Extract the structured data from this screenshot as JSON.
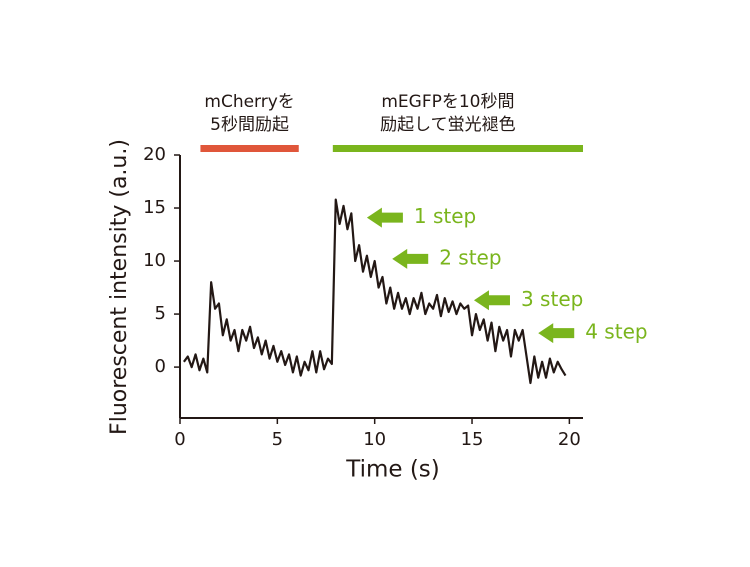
{
  "chart_data": {
    "type": "line",
    "xlabel": "Time (s)",
    "ylabel": "Fluorescent intensity (a.u.)",
    "xlim": [
      0,
      20.7
    ],
    "ylim": [
      -4.8,
      20
    ],
    "xticks": [
      0,
      5,
      10,
      15,
      20
    ],
    "yticks": [
      0,
      5,
      10,
      15,
      20
    ],
    "x": [
      0.2,
      0.4,
      0.6,
      0.8,
      1.0,
      1.2,
      1.4,
      1.6,
      1.8,
      2.0,
      2.2,
      2.4,
      2.6,
      2.8,
      3.0,
      3.2,
      3.4,
      3.6,
      3.8,
      4.0,
      4.2,
      4.4,
      4.6,
      4.8,
      5.0,
      5.2,
      5.4,
      5.6,
      5.8,
      6.0,
      6.2,
      6.4,
      6.6,
      6.8,
      7.0,
      7.2,
      7.4,
      7.6,
      7.8,
      8.0,
      8.2,
      8.4,
      8.6,
      8.8,
      9.0,
      9.2,
      9.4,
      9.6,
      9.8,
      10.0,
      10.2,
      10.4,
      10.6,
      10.8,
      11.0,
      11.2,
      11.4,
      11.6,
      11.8,
      12.0,
      12.2,
      12.4,
      12.6,
      12.8,
      13.0,
      13.2,
      13.4,
      13.6,
      13.8,
      14.0,
      14.2,
      14.4,
      14.6,
      14.8,
      15.0,
      15.2,
      15.4,
      15.6,
      15.8,
      16.0,
      16.2,
      16.4,
      16.6,
      16.8,
      17.0,
      17.2,
      17.4,
      17.6,
      17.8,
      18.0,
      18.2,
      18.4,
      18.6,
      18.8,
      19.0,
      19.2,
      19.4,
      19.6,
      19.8
    ],
    "series": [
      {
        "color": "#231815",
        "values": [
          0.5,
          1,
          0,
          1.2,
          -0.3,
          0.8,
          -0.5,
          8,
          5.5,
          6,
          3,
          4.5,
          2.5,
          3.5,
          1.5,
          3.5,
          2.5,
          3.8,
          1.8,
          2.8,
          1.2,
          2.5,
          0.8,
          2,
          0.5,
          1.5,
          0.2,
          1.2,
          -0.5,
          1,
          -0.8,
          0.5,
          -0.3,
          1.5,
          -0.5,
          1.5,
          -0.2,
          0.8,
          0.3,
          15.8,
          13.5,
          15.2,
          13,
          14.5,
          10,
          11.5,
          9,
          10.5,
          8.5,
          10,
          7.5,
          8.5,
          6,
          7.5,
          5.5,
          7,
          5.5,
          6.5,
          5,
          6.5,
          5.5,
          7,
          5,
          6,
          5.5,
          6.8,
          4.8,
          6.5,
          5.2,
          6.2,
          5,
          6,
          5.5,
          5.8,
          3,
          5,
          3.5,
          4.5,
          2.5,
          4.2,
          1.5,
          3.8,
          2.5,
          3.5,
          1,
          3.5,
          2.5,
          3.5,
          1,
          -1.5,
          1,
          -1,
          0.5,
          -1,
          0.8,
          -0.5,
          0.5,
          -0.2,
          -0.8
        ]
      }
    ],
    "annotations": {
      "bars": [
        {
          "label": [
            "mCherryを",
            "5秒間励起"
          ],
          "x": [
            1.05,
            6.1
          ],
          "color": "#e0563a"
        },
        {
          "label": [
            "mEGFPを10秒間",
            "励起して蛍光褪色"
          ],
          "x": [
            7.85,
            20.7
          ],
          "color": "#7ab51d"
        }
      ],
      "arrows": [
        {
          "label": "1 step",
          "x": 9.6,
          "y": 14.1,
          "color": "#7ab51d"
        },
        {
          "label": "2 step",
          "x": 10.9,
          "y": 10.2,
          "color": "#7ab51d"
        },
        {
          "label": "3 step",
          "x": 15.1,
          "y": 6.3,
          "color": "#7ab51d"
        },
        {
          "label": "4 step",
          "x": 18.4,
          "y": 3.2,
          "color": "#7ab51d"
        }
      ]
    }
  }
}
